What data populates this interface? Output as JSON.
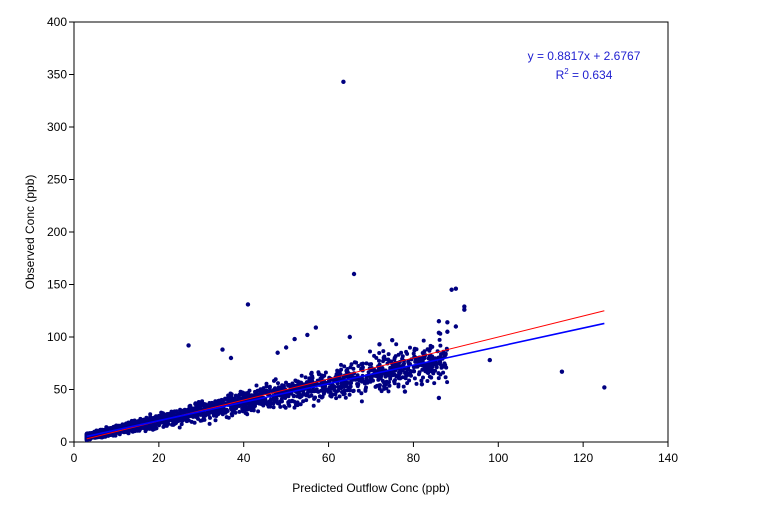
{
  "chart_data": {
    "type": "scatter",
    "xlabel": "Predicted Outflow Conc (ppb)",
    "ylabel": "Observed Conc (ppb)",
    "xlim": [
      0,
      140
    ],
    "ylim": [
      0,
      400
    ],
    "xticks": [
      "0",
      "20",
      "40",
      "60",
      "80",
      "100",
      "120",
      "140"
    ],
    "yticks": [
      "0",
      "50",
      "100",
      "150",
      "200",
      "250",
      "300",
      "350",
      "400"
    ],
    "grid": false,
    "point_color": "#000080",
    "equation": {
      "line1": "y = 0.8817x + 2.6767",
      "r2_prefix": "R",
      "r2_sup": "2",
      "r2_value": " = 0.634"
    },
    "trendlines": [
      {
        "kind": "linear-fit",
        "slope": 0.8817,
        "intercept": 2.6767,
        "x_range": [
          3,
          125
        ],
        "color": "#0000ff"
      },
      {
        "kind": "1:1",
        "slope": 1.0,
        "intercept": 0.0,
        "x_range": [
          3,
          125
        ],
        "color": "#ff0000"
      }
    ],
    "outliers": [
      {
        "x": 63.5,
        "y": 343
      },
      {
        "x": 66,
        "y": 160
      },
      {
        "x": 41,
        "y": 131
      },
      {
        "x": 89,
        "y": 145
      },
      {
        "x": 90,
        "y": 146
      },
      {
        "x": 92,
        "y": 129
      },
      {
        "x": 92,
        "y": 126
      },
      {
        "x": 88,
        "y": 114
      },
      {
        "x": 88,
        "y": 105
      },
      {
        "x": 90,
        "y": 110
      },
      {
        "x": 86,
        "y": 115
      },
      {
        "x": 86,
        "y": 104
      },
      {
        "x": 57,
        "y": 109
      },
      {
        "x": 55,
        "y": 102
      },
      {
        "x": 52,
        "y": 98
      },
      {
        "x": 27,
        "y": 92
      },
      {
        "x": 65,
        "y": 100
      },
      {
        "x": 72,
        "y": 93
      },
      {
        "x": 75,
        "y": 97
      },
      {
        "x": 98,
        "y": 78
      },
      {
        "x": 115,
        "y": 67
      },
      {
        "x": 125,
        "y": 52
      },
      {
        "x": 86,
        "y": 42
      },
      {
        "x": 82,
        "y": 55
      },
      {
        "x": 78,
        "y": 48
      },
      {
        "x": 35,
        "y": 88
      },
      {
        "x": 37,
        "y": 80
      },
      {
        "x": 48,
        "y": 85
      },
      {
        "x": 50,
        "y": 90
      }
    ]
  }
}
